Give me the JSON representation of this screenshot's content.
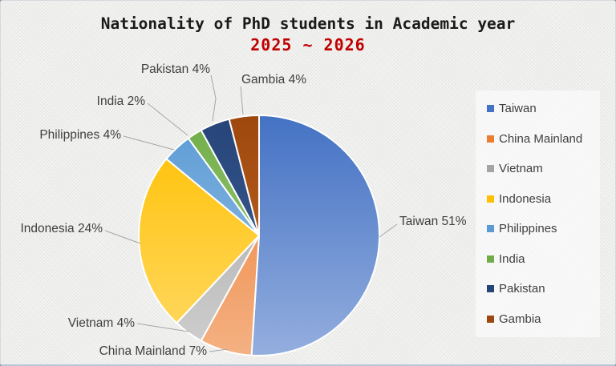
{
  "title": {
    "line1": "Nationality of PhD students in Academic year",
    "line2": "2025 ~ 2026"
  },
  "colors": {
    "title_line1": "#1a1a1a",
    "title_line2": "#C00000",
    "label_text": "#404040",
    "leader_line": "#A6A6A6",
    "slice_border": "#FFFFFF"
  },
  "chart_data": {
    "type": "pie",
    "title": "Nationality of PhD students in Academic year 2025 ~ 2026",
    "unit": "%",
    "start_angle": "12 o'clock, clockwise",
    "legend_position": "right",
    "categories": [
      "Taiwan",
      "China Mainland",
      "Vietnam",
      "Indonesia",
      "Philippines",
      "India",
      "Pakistan",
      "Gambia"
    ],
    "values": [
      51,
      7,
      4,
      24,
      4,
      2,
      4,
      4
    ],
    "slices": [
      {
        "label": "Taiwan",
        "value": 51,
        "data_label": "Taiwan 51%",
        "color": "#4472C4",
        "color_light": "#94AEDE"
      },
      {
        "label": "China Mainland",
        "value": 7,
        "data_label": "China Mainland 7%",
        "color": "#ED7D31",
        "color_light": "#F4B183"
      },
      {
        "label": "Vietnam",
        "value": 4,
        "data_label": "Vietnam 4%",
        "color": "#A5A5A5",
        "color_light": "#CFCFCF"
      },
      {
        "label": "Indonesia",
        "value": 24,
        "data_label": "Indonesia 24%",
        "color": "#FFC000",
        "color_light": "#FFD966"
      },
      {
        "label": "Philippines",
        "value": 4,
        "data_label": "Philippines 4%",
        "color": "#5B9BD5",
        "color_light": "#9DC3E6"
      },
      {
        "label": "India",
        "value": 2,
        "data_label": "India 2%",
        "color": "#70AD47",
        "color_light": "#A9D18E"
      },
      {
        "label": "Pakistan",
        "value": 4,
        "data_label": "Pakistan 4%",
        "color": "#264478",
        "color_light": "#41659C"
      },
      {
        "label": "Gambia",
        "value": 4,
        "data_label": "Gambia 4%",
        "color": "#9E480E",
        "color_light": "#C86A28"
      }
    ]
  },
  "legend": {
    "items": [
      "Taiwan",
      "China Mainland",
      "Vietnam",
      "Indonesia",
      "Philippines",
      "India",
      "Pakistan",
      "Gambia"
    ]
  }
}
